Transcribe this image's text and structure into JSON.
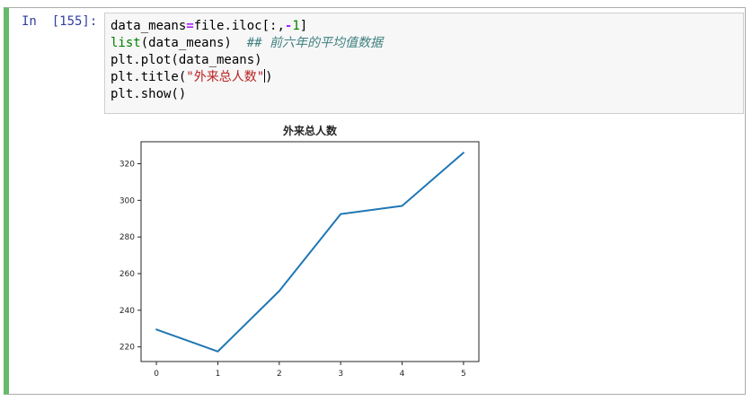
{
  "cell": {
    "prompt": "In  [155]:",
    "code": {
      "line1": {
        "a": "data_means",
        "eq": "=",
        "b": "file.iloc[:,",
        "minus": "-",
        "num": "1",
        "c": "]"
      },
      "line2": {
        "builtin": "list",
        "args": "(data_means)  ",
        "comment": "## 前六年的平均值数据"
      },
      "line3": {
        "text": "plt.plot(data_means)"
      },
      "line4": {
        "pre": "plt.title(",
        "str": "\"外来总人数\"",
        "post": ")"
      },
      "line5": {
        "text": "plt.show()"
      }
    },
    "accent_color": "#66bb6a"
  },
  "chart_data": {
    "type": "line",
    "title": "外来总人数",
    "x": [
      0,
      1,
      2,
      3,
      4,
      5
    ],
    "series": [
      {
        "values": [
          229.5,
          217.5,
          250.5,
          292.5,
          297,
          326
        ],
        "color": "#1f77b4"
      }
    ],
    "xlim": [
      -0.25,
      5.25
    ],
    "ylim": [
      212,
      332
    ],
    "xticks": [
      "0",
      "1",
      "2",
      "3",
      "4",
      "5"
    ],
    "yticks": [
      "220",
      "240",
      "260",
      "280",
      "300",
      "320"
    ],
    "grid": false
  }
}
